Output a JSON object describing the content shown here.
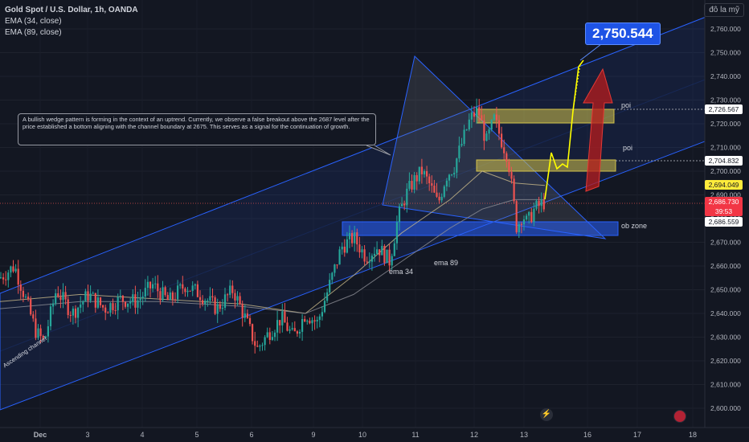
{
  "header": {
    "title": "Gold Spot / U.S. Dollar, 1h, OANDA",
    "ema34_label": "EMA (34, close)",
    "ema89_label": "EMA (89, close)",
    "currency": "đô la mỹ"
  },
  "annotation": {
    "text": "A bullish wedge pattern is forming in the context of an uptrend. Currently, we observe a false breakout above the 2687 level after the price established a bottom aligning with the channel boundary at 2675. This serves as a signal for the continuation of growth."
  },
  "labels": {
    "target": "2,750.544",
    "poi_upper": "poi",
    "poi_lower": "poi",
    "ob_zone": "ob zone",
    "ema34": "ema 34",
    "ema89": "ema 89",
    "channel": "Ascending channel"
  },
  "price_tags": {
    "poi_upper": "2,726.567",
    "poi_lower": "2,704.832",
    "ema_value": "2,694.049",
    "last_price": "2,686.730",
    "countdown": "39:53",
    "ob_zone": "2,686.559"
  },
  "colors": {
    "background": "#131722",
    "bull": "#26a69a",
    "bear": "#ef5350",
    "channel": "#2962ff",
    "poi_zone": "#d4c34a",
    "ob_zone": "#2962ff",
    "path": "#ffff00",
    "arrow": "#b71c1c"
  },
  "icons": {
    "tv_logo": "tradingview-bolt-icon",
    "flag": "us-flag-icon"
  },
  "chart_data": {
    "type": "candlestick",
    "title": "Gold Spot / U.S. Dollar, 1h, OANDA",
    "ylim": [
      2595,
      2770
    ],
    "y_ticks": [
      2600,
      2610,
      2620,
      2630,
      2640,
      2650,
      2660,
      2670,
      2680,
      2690,
      2700,
      2710,
      2720,
      2730,
      2740,
      2750,
      2760
    ],
    "x_ticks": [
      "Dec",
      "3",
      "4",
      "5",
      "6",
      "9",
      "10",
      "11",
      "12",
      "13",
      "16",
      "17",
      "18"
    ],
    "close_path": [
      [
        0,
        2655
      ],
      [
        18,
        2660
      ],
      [
        30,
        2648
      ],
      [
        45,
        2632
      ],
      [
        55,
        2628
      ],
      [
        70,
        2650
      ],
      [
        90,
        2640
      ],
      [
        110,
        2648
      ],
      [
        130,
        2642
      ],
      [
        150,
        2646
      ],
      [
        170,
        2645
      ],
      [
        190,
        2652
      ],
      [
        210,
        2645
      ],
      [
        230,
        2652
      ],
      [
        250,
        2648
      ],
      [
        270,
        2642
      ],
      [
        290,
        2650
      ],
      [
        305,
        2638
      ],
      [
        320,
        2625
      ],
      [
        335,
        2632
      ],
      [
        350,
        2638
      ],
      [
        365,
        2630
      ],
      [
        380,
        2640
      ],
      [
        395,
        2636
      ],
      [
        410,
        2652
      ],
      [
        425,
        2668
      ],
      [
        440,
        2672
      ],
      [
        455,
        2664
      ],
      [
        470,
        2668
      ],
      [
        485,
        2662
      ],
      [
        495,
        2680
      ],
      [
        505,
        2690
      ],
      [
        515,
        2696
      ],
      [
        525,
        2700
      ],
      [
        535,
        2694
      ],
      [
        545,
        2686
      ],
      [
        555,
        2698
      ],
      [
        565,
        2702
      ],
      [
        575,
        2712
      ],
      [
        585,
        2722
      ],
      [
        595,
        2726
      ],
      [
        605,
        2712
      ],
      [
        615,
        2722
      ],
      [
        625,
        2712
      ],
      [
        632,
        2706
      ],
      [
        638,
        2690
      ],
      [
        643,
        2676
      ],
      [
        650,
        2682
      ],
      [
        656,
        2678
      ],
      [
        665,
        2684
      ],
      [
        678,
        2687
      ]
    ],
    "ema34": [
      [
        0,
        2645
      ],
      [
        100,
        2648
      ],
      [
        200,
        2646
      ],
      [
        300,
        2644
      ],
      [
        380,
        2640
      ],
      [
        440,
        2656
      ],
      [
        500,
        2674
      ],
      [
        560,
        2688
      ],
      [
        600,
        2700
      ],
      [
        640,
        2695
      ],
      [
        678,
        2694
      ]
    ],
    "ema89": [
      [
        0,
        2642
      ],
      [
        100,
        2645
      ],
      [
        200,
        2645
      ],
      [
        300,
        2643
      ],
      [
        380,
        2640
      ],
      [
        440,
        2648
      ],
      [
        500,
        2662
      ],
      [
        560,
        2676
      ],
      [
        600,
        2684
      ],
      [
        640,
        2688
      ],
      [
        678,
        2688
      ]
    ],
    "zones": [
      {
        "name": "poi",
        "from": 2722,
        "to": 2727
      },
      {
        "name": "poi",
        "from": 2700,
        "to": 2704.8
      },
      {
        "name": "ob zone",
        "from": 2673,
        "to": 2679
      }
    ],
    "projection": [
      2687,
      2705,
      2699,
      2722,
      2750.5
    ],
    "target": 2750.544
  }
}
